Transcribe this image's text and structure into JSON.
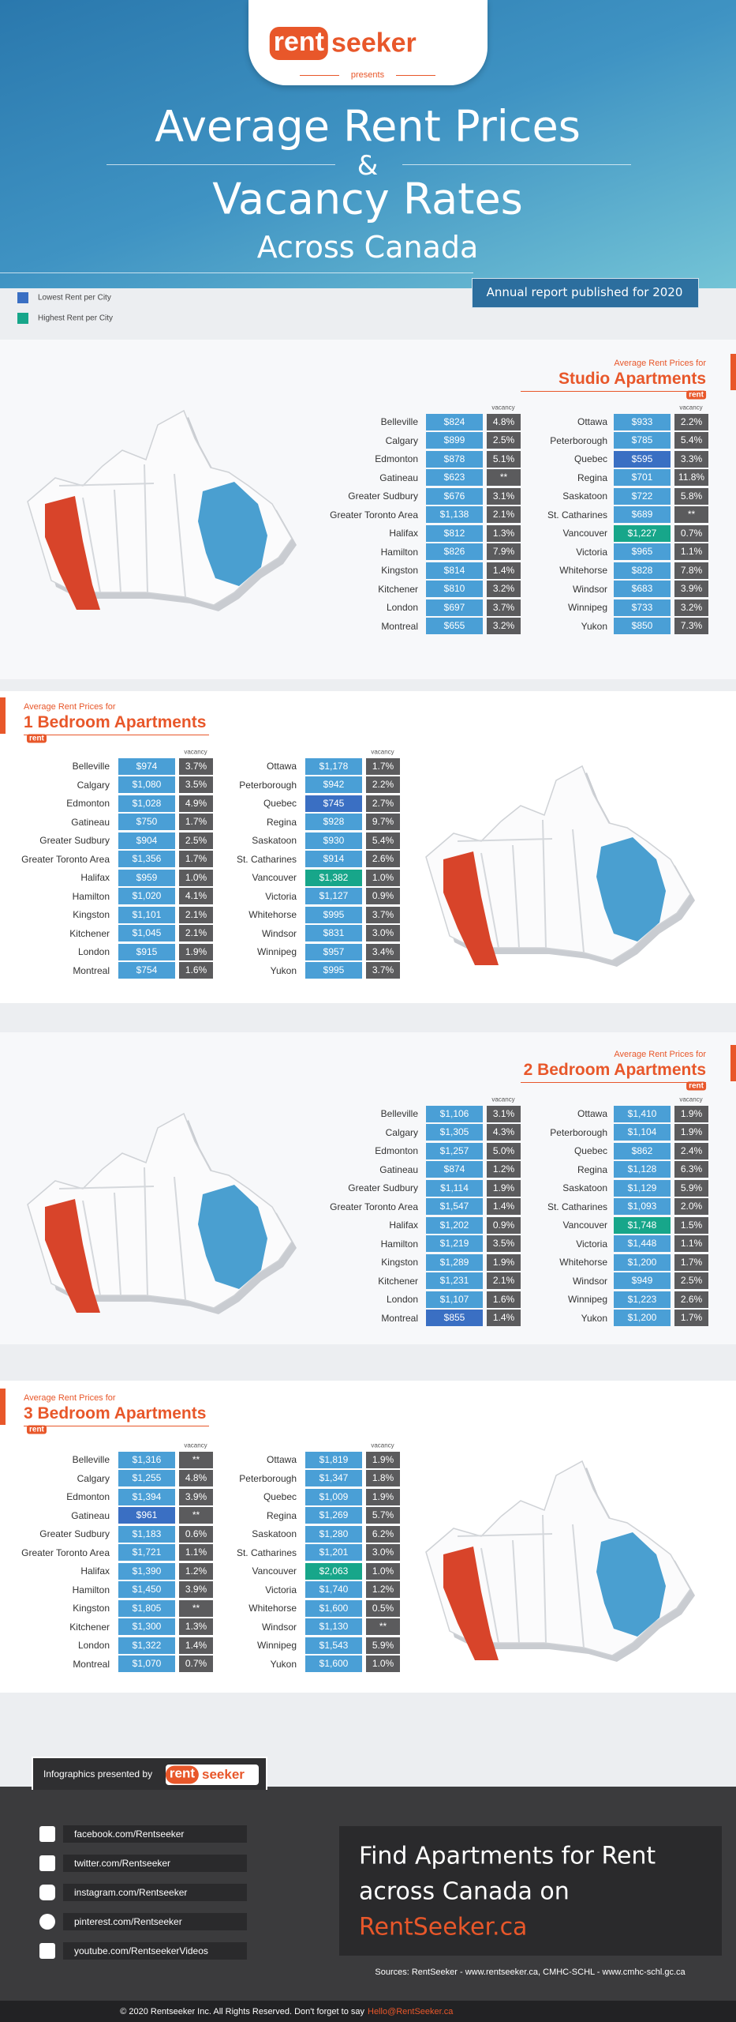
{
  "header": {
    "logo_rent": "rent",
    "logo_seeker": "seeker",
    "presents": "presents",
    "title_line1": "Average Rent Prices",
    "ampersand": "&",
    "title_line2": "Vacancy Rates",
    "subtitle": "Across Canada",
    "report_note": "Annual report published for 2020"
  },
  "legend": [
    {
      "label": "Lowest Rent per City",
      "color": "#3a6fc3"
    },
    {
      "label": "Highest Rent per City",
      "color": "#17a68a"
    }
  ],
  "rent_color": "#4a9fd6",
  "vacancy_color": "#5b5b5d",
  "sections": [
    {
      "label": "Average Rent Prices for",
      "title": "Studio Apartments",
      "tag": "rent",
      "vacancy_header": "vacancy",
      "columns": [
        [
          {
            "city": "Belleville",
            "rent": "$824",
            "vacancy": "4.8%"
          },
          {
            "city": "Calgary",
            "rent": "$899",
            "vacancy": "2.5%"
          },
          {
            "city": "Edmonton",
            "rent": "$878",
            "vacancy": "5.1%"
          },
          {
            "city": "Gatineau",
            "rent": "$623",
            "vacancy": "**"
          },
          {
            "city": "Greater Sudbury",
            "rent": "$676",
            "vacancy": "3.1%"
          },
          {
            "city": "Greater Toronto Area",
            "rent": "$1,138",
            "vacancy": "2.1%"
          },
          {
            "city": "Halifax",
            "rent": "$812",
            "vacancy": "1.3%"
          },
          {
            "city": "Hamilton",
            "rent": "$826",
            "vacancy": "7.9%"
          },
          {
            "city": "Kingston",
            "rent": "$814",
            "vacancy": "1.4%"
          },
          {
            "city": "Kitchener",
            "rent": "$810",
            "vacancy": "3.2%"
          },
          {
            "city": "London",
            "rent": "$697",
            "vacancy": "3.7%"
          },
          {
            "city": "Montreal",
            "rent": "$655",
            "vacancy": "3.2%"
          }
        ],
        [
          {
            "city": "Ottawa",
            "rent": "$933",
            "vacancy": "2.2%"
          },
          {
            "city": "Peterborough",
            "rent": "$785",
            "vacancy": "5.4%"
          },
          {
            "city": "Quebec",
            "rent": "$595",
            "vacancy": "3.3%",
            "highlight": 0
          },
          {
            "city": "Regina",
            "rent": "$701",
            "vacancy": "11.8%"
          },
          {
            "city": "Saskatoon",
            "rent": "$722",
            "vacancy": "5.8%"
          },
          {
            "city": "St. Catharines",
            "rent": "$689",
            "vacancy": "**"
          },
          {
            "city": "Vancouver",
            "rent": "$1,227",
            "vacancy": "0.7%",
            "highlight": 1
          },
          {
            "city": "Victoria",
            "rent": "$965",
            "vacancy": "1.1%"
          },
          {
            "city": "Whitehorse",
            "rent": "$828",
            "vacancy": "7.8%"
          },
          {
            "city": "Windsor",
            "rent": "$683",
            "vacancy": "3.9%"
          },
          {
            "city": "Winnipeg",
            "rent": "$733",
            "vacancy": "3.2%"
          },
          {
            "city": "Yukon",
            "rent": "$850",
            "vacancy": "7.3%"
          }
        ]
      ]
    },
    {
      "label": "Average Rent Prices for",
      "title": "1 Bedroom Apartments",
      "tag": "rent",
      "vacancy_header": "vacancy",
      "columns": [
        [
          {
            "city": "Belleville",
            "rent": "$974",
            "vacancy": "3.7%"
          },
          {
            "city": "Calgary",
            "rent": "$1,080",
            "vacancy": "3.5%"
          },
          {
            "city": "Edmonton",
            "rent": "$1,028",
            "vacancy": "4.9%"
          },
          {
            "city": "Gatineau",
            "rent": "$750",
            "vacancy": "1.7%"
          },
          {
            "city": "Greater Sudbury",
            "rent": "$904",
            "vacancy": "2.5%"
          },
          {
            "city": "Greater Toronto Area",
            "rent": "$1,356",
            "vacancy": "1.7%"
          },
          {
            "city": "Halifax",
            "rent": "$959",
            "vacancy": "1.0%"
          },
          {
            "city": "Hamilton",
            "rent": "$1,020",
            "vacancy": "4.1%"
          },
          {
            "city": "Kingston",
            "rent": "$1,101",
            "vacancy": "2.1%"
          },
          {
            "city": "Kitchener",
            "rent": "$1,045",
            "vacancy": "2.1%"
          },
          {
            "city": "London",
            "rent": "$915",
            "vacancy": "1.9%"
          },
          {
            "city": "Montreal",
            "rent": "$754",
            "vacancy": "1.6%"
          }
        ],
        [
          {
            "city": "Ottawa",
            "rent": "$1,178",
            "vacancy": "1.7%"
          },
          {
            "city": "Peterborough",
            "rent": "$942",
            "vacancy": "2.2%"
          },
          {
            "city": "Quebec",
            "rent": "$745",
            "vacancy": "2.7%",
            "highlight": 0
          },
          {
            "city": "Regina",
            "rent": "$928",
            "vacancy": "9.7%"
          },
          {
            "city": "Saskatoon",
            "rent": "$930",
            "vacancy": "5.4%"
          },
          {
            "city": "St. Catharines",
            "rent": "$914",
            "vacancy": "2.6%"
          },
          {
            "city": "Vancouver",
            "rent": "$1,382",
            "vacancy": "1.0%",
            "highlight": 1
          },
          {
            "city": "Victoria",
            "rent": "$1,127",
            "vacancy": "0.9%"
          },
          {
            "city": "Whitehorse",
            "rent": "$995",
            "vacancy": "3.7%"
          },
          {
            "city": "Windsor",
            "rent": "$831",
            "vacancy": "3.0%"
          },
          {
            "city": "Winnipeg",
            "rent": "$957",
            "vacancy": "3.4%"
          },
          {
            "city": "Yukon",
            "rent": "$995",
            "vacancy": "3.7%"
          }
        ]
      ]
    },
    {
      "label": "Average Rent Prices for",
      "title": "2 Bedroom Apartments",
      "tag": "rent",
      "vacancy_header": "vacancy",
      "columns": [
        [
          {
            "city": "Belleville",
            "rent": "$1,106",
            "vacancy": "3.1%"
          },
          {
            "city": "Calgary",
            "rent": "$1,305",
            "vacancy": "4.3%"
          },
          {
            "city": "Edmonton",
            "rent": "$1,257",
            "vacancy": "5.0%"
          },
          {
            "city": "Gatineau",
            "rent": "$874",
            "vacancy": "1.2%"
          },
          {
            "city": "Greater Sudbury",
            "rent": "$1,114",
            "vacancy": "1.9%"
          },
          {
            "city": "Greater Toronto Area",
            "rent": "$1,547",
            "vacancy": "1.4%"
          },
          {
            "city": "Halifax",
            "rent": "$1,202",
            "vacancy": "0.9%"
          },
          {
            "city": "Hamilton",
            "rent": "$1,219",
            "vacancy": "3.5%"
          },
          {
            "city": "Kingston",
            "rent": "$1,289",
            "vacancy": "1.9%"
          },
          {
            "city": "Kitchener",
            "rent": "$1,231",
            "vacancy": "2.1%"
          },
          {
            "city": "London",
            "rent": "$1,107",
            "vacancy": "1.6%"
          },
          {
            "city": "Montreal",
            "rent": "$855",
            "vacancy": "1.4%",
            "highlight": 0
          }
        ],
        [
          {
            "city": "Ottawa",
            "rent": "$1,410",
            "vacancy": "1.9%"
          },
          {
            "city": "Peterborough",
            "rent": "$1,104",
            "vacancy": "1.9%"
          },
          {
            "city": "Quebec",
            "rent": "$862",
            "vacancy": "2.4%"
          },
          {
            "city": "Regina",
            "rent": "$1,128",
            "vacancy": "6.3%"
          },
          {
            "city": "Saskatoon",
            "rent": "$1,129",
            "vacancy": "5.9%"
          },
          {
            "city": "St. Catharines",
            "rent": "$1,093",
            "vacancy": "2.0%"
          },
          {
            "city": "Vancouver",
            "rent": "$1,748",
            "vacancy": "1.5%",
            "highlight": 1
          },
          {
            "city": "Victoria",
            "rent": "$1,448",
            "vacancy": "1.1%"
          },
          {
            "city": "Whitehorse",
            "rent": "$1,200",
            "vacancy": "1.7%"
          },
          {
            "city": "Windsor",
            "rent": "$949",
            "vacancy": "2.5%"
          },
          {
            "city": "Winnipeg",
            "rent": "$1,223",
            "vacancy": "2.6%"
          },
          {
            "city": "Yukon",
            "rent": "$1,200",
            "vacancy": "1.7%"
          }
        ]
      ]
    },
    {
      "label": "Average Rent Prices for",
      "title": "3 Bedroom Apartments",
      "tag": "rent",
      "vacancy_header": "vacancy",
      "columns": [
        [
          {
            "city": "Belleville",
            "rent": "$1,316",
            "vacancy": "**"
          },
          {
            "city": "Calgary",
            "rent": "$1,255",
            "vacancy": "4.8%"
          },
          {
            "city": "Edmonton",
            "rent": "$1,394",
            "vacancy": "3.9%"
          },
          {
            "city": "Gatineau",
            "rent": "$961",
            "vacancy": "**",
            "highlight": 0
          },
          {
            "city": "Greater Sudbury",
            "rent": "$1,183",
            "vacancy": "0.6%"
          },
          {
            "city": "Greater Toronto Area",
            "rent": "$1,721",
            "vacancy": "1.1%"
          },
          {
            "city": "Halifax",
            "rent": "$1,390",
            "vacancy": "1.2%"
          },
          {
            "city": "Hamilton",
            "rent": "$1,450",
            "vacancy": "3.9%"
          },
          {
            "city": "Kingston",
            "rent": "$1,805",
            "vacancy": "**"
          },
          {
            "city": "Kitchener",
            "rent": "$1,300",
            "vacancy": "1.3%"
          },
          {
            "city": "London",
            "rent": "$1,322",
            "vacancy": "1.4%"
          },
          {
            "city": "Montreal",
            "rent": "$1,070",
            "vacancy": "0.7%"
          }
        ],
        [
          {
            "city": "Ottawa",
            "rent": "$1,819",
            "vacancy": "1.9%"
          },
          {
            "city": "Peterborough",
            "rent": "$1,347",
            "vacancy": "1.8%"
          },
          {
            "city": "Quebec",
            "rent": "$1,009",
            "vacancy": "1.9%"
          },
          {
            "city": "Regina",
            "rent": "$1,269",
            "vacancy": "5.7%"
          },
          {
            "city": "Saskatoon",
            "rent": "$1,280",
            "vacancy": "6.2%"
          },
          {
            "city": "St. Catharines",
            "rent": "$1,201",
            "vacancy": "3.0%"
          },
          {
            "city": "Vancouver",
            "rent": "$2,063",
            "vacancy": "1.0%",
            "highlight": 1
          },
          {
            "city": "Victoria",
            "rent": "$1,740",
            "vacancy": "1.2%"
          },
          {
            "city": "Whitehorse",
            "rent": "$1,600",
            "vacancy": "0.5%"
          },
          {
            "city": "Windsor",
            "rent": "$1,130",
            "vacancy": "**"
          },
          {
            "city": "Winnipeg",
            "rent": "$1,543",
            "vacancy": "5.9%"
          },
          {
            "city": "Yukon",
            "rent": "$1,600",
            "vacancy": "1.0%"
          }
        ]
      ]
    }
  ],
  "footer": {
    "presented_by": "Infographics presented by",
    "logo_rent": "rent",
    "logo_seeker": "seeker",
    "social": [
      "facebook.com/Rentseeker",
      "twitter.com/Rentseeker",
      "instagram.com/Rentseeker",
      "pinterest.com/Rentseeker",
      "youtube.com/RentseekerVideos"
    ],
    "cta_line1": "Find Apartments for Rent",
    "cta_line2": "across Canada on",
    "cta_link": "RentSeeker.ca",
    "sources": "Sources: RentSeeker - www.rentseeker.ca, CMHC-SCHL - www.cmhc-schl.gc.ca",
    "copyright": "© 2020 Rentseeker Inc. All Rights Reserved. Don't forget to say",
    "email": "Hello@RentSeeker.ca"
  }
}
